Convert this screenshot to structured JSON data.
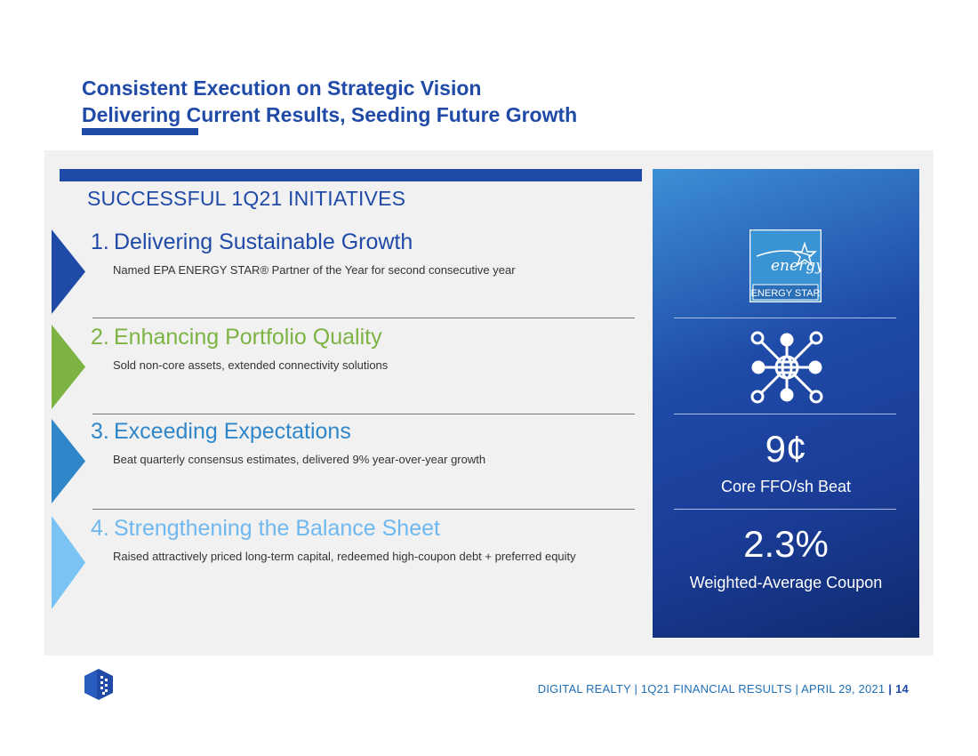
{
  "header": {
    "title_line1": "Consistent Execution on Strategic Vision",
    "title_line2": "Delivering Current Results, Seeding Future Growth"
  },
  "section": {
    "heading": "SUCCESSFUL 1Q21 INITIATIVES"
  },
  "initiatives": [
    {
      "number": "1.",
      "title": "Delivering Sustainable Growth",
      "description": "Named EPA ENERGY STAR® Partner of the Year for second consecutive year",
      "color": "#1f4aa8"
    },
    {
      "number": "2.",
      "title": "Enhancing Portfolio Quality",
      "description": "Sold non-core assets, extended connectivity solutions",
      "color": "#7cb342"
    },
    {
      "number": "3.",
      "title": "Exceeding Expectations",
      "description": "Beat quarterly consensus estimates, delivered 9% year-over-year growth",
      "color": "#2f86c9"
    },
    {
      "number": "4.",
      "title": "Strengthening the Balance Sheet",
      "description": "Raised attractively priced long-term capital, redeemed high-coupon debt + preferred equity",
      "color": "#6fb8ef"
    }
  ],
  "kpis": {
    "energy_star_label": "ENERGY STAR",
    "energy_star_script": "energy",
    "network_icon": "network-globe-icon",
    "ffo_value": "9¢",
    "ffo_label": "Core FFO/sh Beat",
    "coupon_value": "2.3%",
    "coupon_label": "Weighted-Average Coupon"
  },
  "footer": {
    "text": "DIGITAL REALTY | 1Q21 FINANCIAL RESULTS | APRIL 29, 2021",
    "separator": "|",
    "page": "14"
  }
}
